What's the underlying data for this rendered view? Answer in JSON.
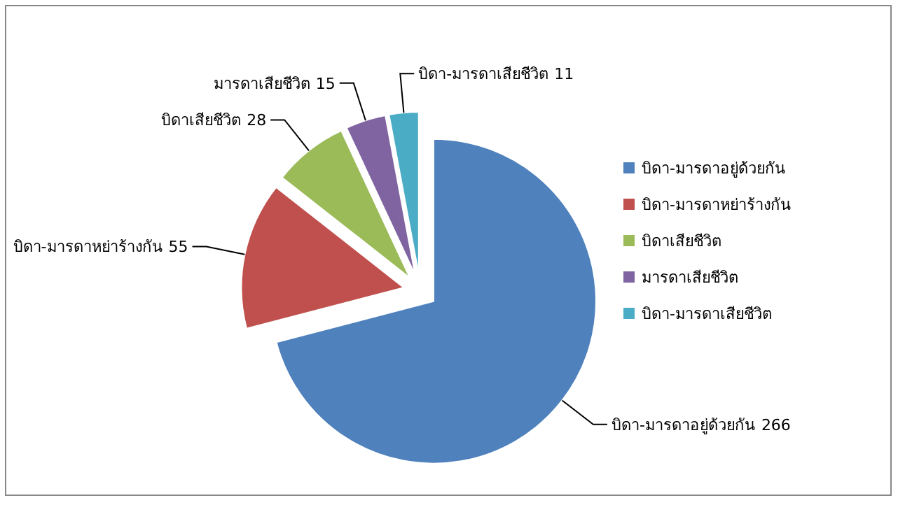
{
  "chart_data": {
    "type": "pie",
    "categories": [
      "บิดา-มารดาอยู่ด้วยกัน",
      "บิดา-มารดาหย่าร้างกัน",
      "บิดาเสียชีวิต",
      "มารดาเสียชีวิต",
      "บิดา-มารดาเสียชีวิต"
    ],
    "values": [
      266,
      55,
      28,
      15,
      11
    ],
    "colors": [
      "#4f81bd",
      "#c0504d",
      "#9bbb59",
      "#8064a2",
      "#4bacc6"
    ],
    "data_labels": true,
    "legend": "right"
  }
}
